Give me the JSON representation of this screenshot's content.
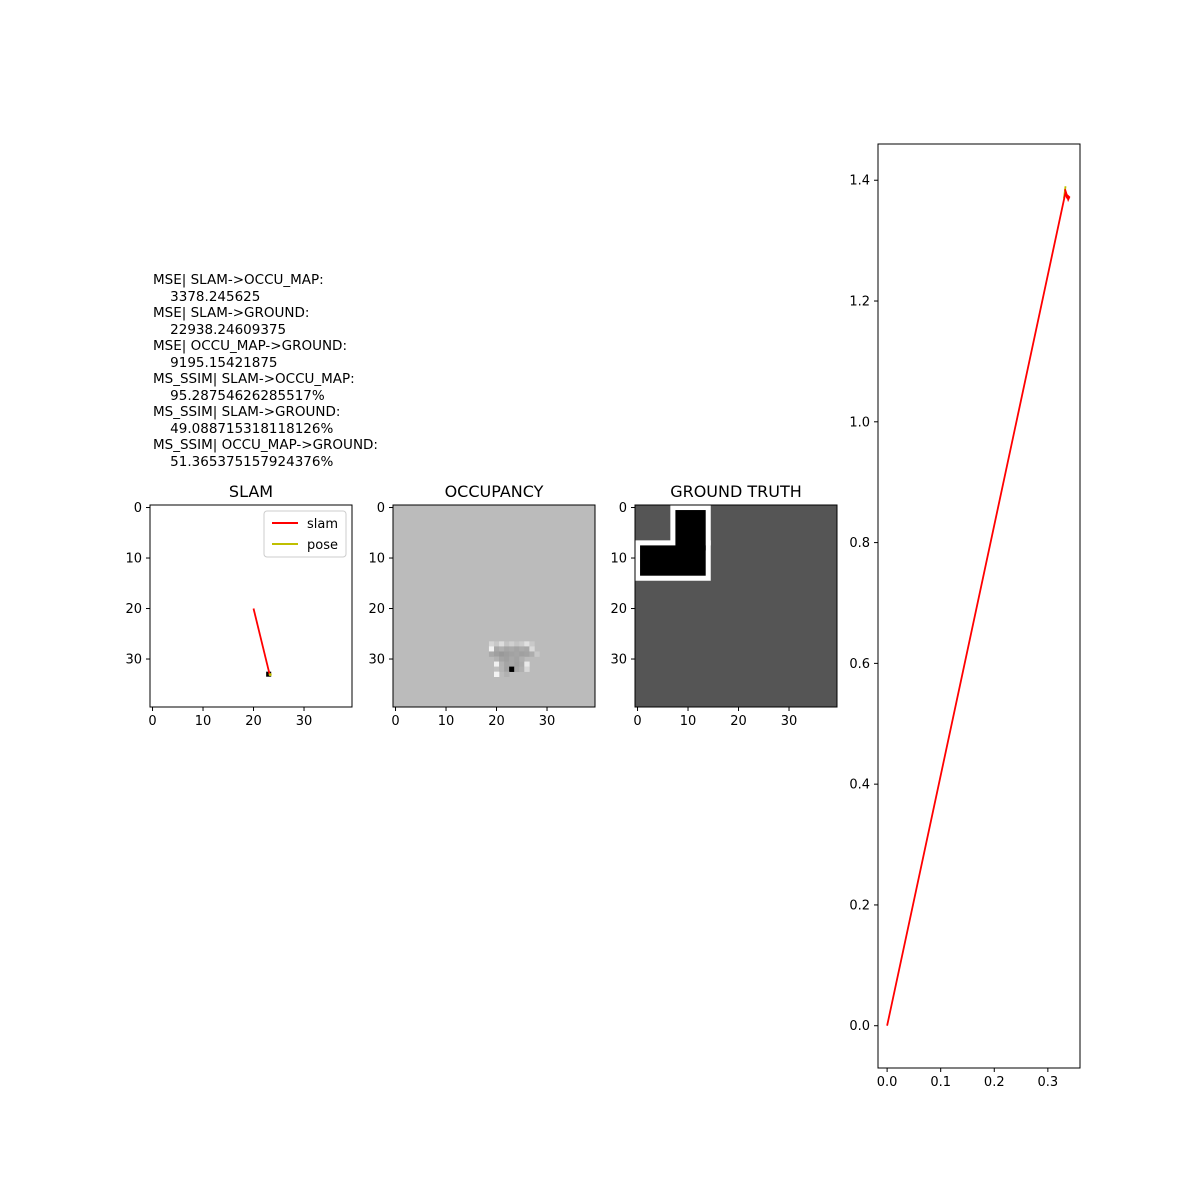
{
  "stats": {
    "lines": [
      "MSE| SLAM->OCCU_MAP:",
      "    3378.245625",
      "MSE| SLAM->GROUND:",
      "    22938.24609375",
      "MSE| OCCU_MAP->GROUND:",
      "    9195.15421875",
      "MS_SSIM| SLAM->OCCU_MAP:",
      "    95.28754626285517%",
      "MS_SSIM| SLAM->GROUND:",
      "    49.088715318118126%",
      "MS_SSIM| OCCU_MAP->GROUND:",
      "    51.365375157924376%"
    ]
  },
  "chart_data": [
    {
      "type": "line",
      "title": "SLAM",
      "xlim": [
        -0.5,
        39.5
      ],
      "ylim": [
        39.5,
        -0.5
      ],
      "x_ticks": [
        0,
        10,
        20,
        30
      ],
      "y_ticks": [
        0,
        10,
        20,
        30
      ],
      "legend": {
        "placement": "top-right",
        "entries": [
          "slam",
          "pose"
        ]
      },
      "series": [
        {
          "name": "slam",
          "color": "#ff0000",
          "points": [
            [
              20,
              20
            ],
            [
              23.2,
              33.1
            ]
          ]
        },
        {
          "name": "pose",
          "color": "#bfbf00",
          "points": [
            [
              23.3,
              33.1
            ]
          ]
        }
      ],
      "image": {
        "background": "#ffffff",
        "dark_cells": [
          [
            23,
            33,
            "#000000"
          ]
        ]
      }
    },
    {
      "type": "heatmap",
      "title": "OCCUPANCY",
      "xlim": [
        -0.5,
        39.5
      ],
      "ylim": [
        39.5,
        -0.5
      ],
      "x_ticks": [
        0,
        10,
        20,
        30
      ],
      "y_ticks": [
        0,
        10,
        20,
        30
      ],
      "background": "#bbbbbb",
      "cells": [
        [
          19,
          27,
          "#d5d5d5"
        ],
        [
          20,
          27,
          "#c8c8c8"
        ],
        [
          21,
          27,
          "#dddddd"
        ],
        [
          22,
          27,
          "#c4c4c4"
        ],
        [
          23,
          27,
          "#d0d0d0"
        ],
        [
          24,
          27,
          "#c4c4c4"
        ],
        [
          25,
          27,
          "#cccccc"
        ],
        [
          26,
          27,
          "#e0e0e0"
        ],
        [
          27,
          27,
          "#c9c9c9"
        ],
        [
          19,
          28,
          "#f2f2f2"
        ],
        [
          20,
          28,
          "#a8a8a8"
        ],
        [
          21,
          28,
          "#b0b0b0"
        ],
        [
          22,
          28,
          "#a6a6a6"
        ],
        [
          23,
          28,
          "#aaaaaa"
        ],
        [
          24,
          28,
          "#a4a4a4"
        ],
        [
          25,
          28,
          "#ababab"
        ],
        [
          26,
          28,
          "#a7a7a7"
        ],
        [
          27,
          28,
          "#dadada"
        ],
        [
          19,
          29,
          "#a9a9a9"
        ],
        [
          20,
          29,
          "#a0a0a0"
        ],
        [
          21,
          29,
          "#999999"
        ],
        [
          22,
          29,
          "#9e9e9e"
        ],
        [
          23,
          29,
          "#a2a2a2"
        ],
        [
          24,
          29,
          "#a5a5a5"
        ],
        [
          25,
          29,
          "#a0a0a0"
        ],
        [
          26,
          29,
          "#a3a3a3"
        ],
        [
          27,
          29,
          "#adadad"
        ],
        [
          28,
          29,
          "#c8c8c8"
        ],
        [
          20,
          30,
          "#b2b2b2"
        ],
        [
          21,
          30,
          "#a4a4a4"
        ],
        [
          22,
          30,
          "#a0a0a0"
        ],
        [
          23,
          30,
          "#a8a8a8"
        ],
        [
          24,
          30,
          "#a3a3a3"
        ],
        [
          25,
          30,
          "#afafaf"
        ],
        [
          20,
          31,
          "#f0f0f0"
        ],
        [
          21,
          31,
          "#b3b3b3"
        ],
        [
          22,
          31,
          "#a5a5a5"
        ],
        [
          23,
          31,
          "#a9a9a9"
        ],
        [
          24,
          31,
          "#a2a2a2"
        ],
        [
          25,
          31,
          "#ababab"
        ],
        [
          26,
          31,
          "#e9e9e9"
        ],
        [
          20,
          32,
          "#c0c0c0"
        ],
        [
          21,
          32,
          "#b4b4b4"
        ],
        [
          22,
          32,
          "#a3a3a3"
        ],
        [
          23,
          32,
          "#000000"
        ],
        [
          24,
          32,
          "#a6a6a6"
        ],
        [
          25,
          32,
          "#b0b0b0"
        ],
        [
          26,
          32,
          "#d8d8d8"
        ],
        [
          20,
          33,
          "#f3f3f3"
        ],
        [
          22,
          33,
          "#b1b1b1"
        ]
      ]
    },
    {
      "type": "heatmap",
      "title": "GROUND TRUTH",
      "xlim": [
        -0.5,
        39.5
      ],
      "ylim": [
        39.5,
        -0.5
      ],
      "x_ticks": [
        0,
        10,
        20,
        30
      ],
      "y_ticks": [
        0,
        10,
        20,
        30
      ],
      "background": "#555555",
      "blocks": [
        {
          "x0": 0,
          "x1": 14,
          "y0": 7,
          "y1": 14,
          "color": "#ffffff"
        },
        {
          "x0": 7,
          "x1": 14,
          "y0": 0,
          "y1": 7,
          "color": "#ffffff"
        },
        {
          "x0": 1,
          "x1": 13,
          "y0": 8,
          "y1": 13,
          "color": "#000000"
        },
        {
          "x0": 8,
          "x1": 13,
          "y0": 1,
          "y1": 8,
          "color": "#000000"
        }
      ]
    },
    {
      "type": "line",
      "title": "",
      "xlim": [
        -0.017,
        0.36
      ],
      "ylim": [
        -0.07,
        1.46
      ],
      "x_ticks": [
        0.0,
        0.1,
        0.2,
        0.3
      ],
      "y_ticks": [
        0.0,
        0.2,
        0.4,
        0.6,
        0.8,
        1.0,
        1.2,
        1.4
      ],
      "series": [
        {
          "name": "",
          "color": "#bfbf00",
          "points": [
            [
              0.33,
              1.37
            ],
            [
              0.333,
              1.39
            ]
          ]
        },
        {
          "name": "",
          "color": "#ff0000",
          "points": [
            [
              0.0,
              0.0
            ],
            [
              0.333,
              1.38
            ],
            [
              0.336,
              1.37
            ],
            [
              0.332,
              1.385
            ],
            [
              0.338,
              1.368
            ],
            [
              0.34,
              1.372
            ],
            [
              0.335,
              1.376
            ]
          ]
        }
      ]
    }
  ]
}
